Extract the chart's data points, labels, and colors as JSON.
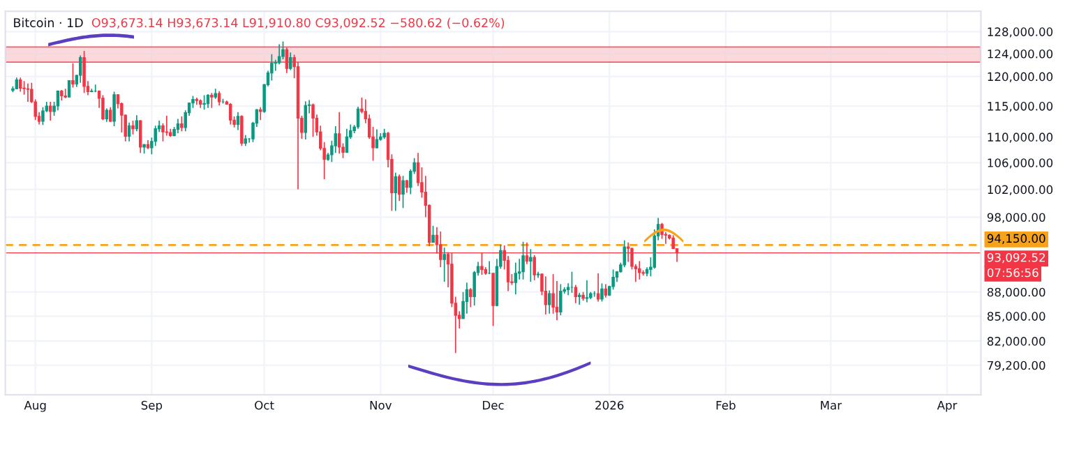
{
  "chart_data": {
    "type": "candlestick",
    "title": "Bitcoin · 1D",
    "subtitle": "O93,673.14 H93,673.14 L91,910.80 C93,092.52 −580.62 (−0.62%)",
    "annotations": [
      "07:56:56"
    ],
    "colors": [
      "#089981",
      "#089981",
      "#f23645",
      "#f23645",
      "#f23645",
      "#f23645",
      "#f23645",
      "#f23645",
      "#089981",
      "#089981",
      "#f23645",
      "#089981",
      "#089981",
      "#f23645",
      "#f23645",
      "#089981",
      "#f23645",
      "#089981",
      "#089981",
      "#f23645",
      "#f23645",
      "#089981",
      "#089981",
      "#f23645",
      "#f23645",
      "#089981",
      "#f23645",
      "#089981",
      "#f23645",
      "#f23645",
      "#f23645",
      "#089981",
      "#f23645",
      "#089981",
      "#f23645",
      "#089981",
      "#f23645",
      "#089981",
      "#089981",
      "#089981",
      "#f23645",
      "#f23645",
      "#f23645",
      "#089981",
      "#089981",
      "#f23645",
      "#089981",
      "#089981",
      "#089981",
      "#f23645",
      "#f23645",
      "#089981",
      "#089981",
      "#f23645",
      "#089981",
      "#f23645",
      "#089981",
      "#f23645",
      "#f23645",
      "#f23645",
      "#089981",
      "#f23645",
      "#089981",
      "#089981",
      "#089981",
      "#089981",
      "#f23645",
      "#089981",
      "#089981",
      "#089981",
      "#089981",
      "#089981",
      "#089981",
      "#f23645",
      "#089981",
      "#f23645",
      "#f23645",
      "#f23645",
      "#089981",
      "#089981",
      "#f23645",
      "#f23645",
      "#f23645",
      "#f23645",
      "#089981",
      "#089981",
      "#089981",
      "#f23645",
      "#f23645",
      "#089981",
      "#089981",
      "#089981",
      "#089981",
      "#f23645",
      "#f23645",
      "#f23645",
      "#f23645",
      "#089981",
      "#089981",
      "#089981",
      "#f23645",
      "#f23645",
      "#089981",
      "#f23645",
      "#089981",
      "#f23645",
      "#089981",
      "#089981",
      "#f23645",
      "#f23645",
      "#f23645",
      "#f23645",
      "#089981",
      "#f23645",
      "#f23645",
      "#089981",
      "#f23645",
      "#f23645",
      "#f23645",
      "#f23645",
      "#089981",
      "#089981",
      "#f23645",
      "#089981",
      "#089981",
      "#f23645",
      "#f23645",
      "#089981",
      "#f23645",
      "#089981",
      "#089981",
      "#f23645",
      "#f23645",
      "#f23645",
      "#089981",
      "#089981",
      "#089981",
      "#f23645",
      "#089981",
      "#f23645",
      "#089981",
      "#f23645",
      "#f23645",
      "#089981",
      "#f23645",
      "#f23645",
      "#089981",
      "#089981",
      "#089981",
      "#089981",
      "#f23645",
      "#089981",
      "#f23645",
      "#089981",
      "#089981",
      "#089981",
      "#f23645",
      "#089981",
      "#f23645",
      "#089981",
      "#089981",
      "#089981",
      "#089981",
      "#089981",
      "#f23645",
      "#f23645",
      "#f23645",
      "#f23645",
      "#f23645",
      "#089981",
      "#089981",
      "#089981",
      "#089981",
      "#f23645",
      "#f23645",
      "#f23645",
      "#f23645",
      "#f23645"
    ],
    "log": "y",
    "grid": true,
    "xlim": [
      "2025-07-24",
      "2026-04-10"
    ],
    "xticks": [
      {
        "value": "2025-08-01",
        "label": "Aug"
      },
      {
        "value": "2025-09-01",
        "label": "Sep"
      },
      {
        "value": "2025-10-01",
        "label": "Oct"
      },
      {
        "value": "2025-11-01",
        "label": "Nov"
      },
      {
        "value": "2025-12-01",
        "label": "Dec"
      },
      {
        "value": "2026-01-01",
        "label": "2026"
      },
      {
        "value": "2026-02-01",
        "label": "Feb"
      },
      {
        "value": "2026-03-01",
        "label": "Mar"
      },
      {
        "value": "2026-04-01",
        "label": "Apr"
      }
    ],
    "ylim": [
      75900,
      131800
    ],
    "yticks": [
      {
        "value": 79200,
        "label": "79,200.00"
      },
      {
        "value": 82000,
        "label": "82,000.00"
      },
      {
        "value": 85000,
        "label": "85,000.00"
      },
      {
        "value": 88000,
        "label": "88,000.00"
      },
      {
        "value": 98000,
        "label": "98,000.00"
      },
      {
        "value": 102000,
        "label": "102,000.00"
      },
      {
        "value": 106000,
        "label": "106,000.00"
      },
      {
        "value": 110000,
        "label": "110,000.00"
      },
      {
        "value": 115000,
        "label": "115,000.00"
      },
      {
        "value": 120000,
        "label": "120,000.00"
      },
      {
        "value": 124000,
        "label": "124,000.00"
      },
      {
        "value": 128000,
        "label": "128,000.00"
      }
    ],
    "bands": [
      {
        "axis": "y",
        "from": 122500,
        "to": 125200,
        "color": "#f9d0d5"
      }
    ],
    "ref_lines": [
      {
        "axis": "y",
        "value": 94150,
        "label": "94,150.00",
        "color": "#f7a21b",
        "line_style": "dashed"
      },
      {
        "axis": "y",
        "value": 93092.52,
        "label": "93,092.52",
        "color": "#f23645",
        "line_style": "solid"
      }
    ],
    "x": [
      "2025-07-26",
      "2025-07-27",
      "2025-07-28",
      "2025-07-29",
      "2025-07-30",
      "2025-07-31",
      "2025-08-01",
      "2025-08-02",
      "2025-08-03",
      "2025-08-04",
      "2025-08-05",
      "2025-08-06",
      "2025-08-07",
      "2025-08-08",
      "2025-08-09",
      "2025-08-10",
      "2025-08-11",
      "2025-08-12",
      "2025-08-13",
      "2025-08-14",
      "2025-08-15",
      "2025-08-16",
      "2025-08-17",
      "2025-08-18",
      "2025-08-19",
      "2025-08-20",
      "2025-08-21",
      "2025-08-22",
      "2025-08-23",
      "2025-08-24",
      "2025-08-25",
      "2025-08-26",
      "2025-08-27",
      "2025-08-28",
      "2025-08-29",
      "2025-08-30",
      "2025-08-31",
      "2025-09-01",
      "2025-09-02",
      "2025-09-03",
      "2025-09-04",
      "2025-09-05",
      "2025-09-06",
      "2025-09-07",
      "2025-09-08",
      "2025-09-09",
      "2025-09-10",
      "2025-09-11",
      "2025-09-12",
      "2025-09-13",
      "2025-09-14",
      "2025-09-15",
      "2025-09-16",
      "2025-09-17",
      "2025-09-18",
      "2025-09-19",
      "2025-09-20",
      "2025-09-21",
      "2025-09-22",
      "2025-09-23",
      "2025-09-24",
      "2025-09-25",
      "2025-09-26",
      "2025-09-27",
      "2025-09-28",
      "2025-09-29",
      "2025-09-30",
      "2025-10-01",
      "2025-10-02",
      "2025-10-03",
      "2025-10-04",
      "2025-10-05",
      "2025-10-06",
      "2025-10-07",
      "2025-10-08",
      "2025-10-09",
      "2025-10-10",
      "2025-10-11",
      "2025-10-12",
      "2025-10-13",
      "2025-10-14",
      "2025-10-15",
      "2025-10-16",
      "2025-10-17",
      "2025-10-18",
      "2025-10-19",
      "2025-10-20",
      "2025-10-21",
      "2025-10-22",
      "2025-10-23",
      "2025-10-24",
      "2025-10-25",
      "2025-10-26",
      "2025-10-27",
      "2025-10-28",
      "2025-10-29",
      "2025-10-30",
      "2025-10-31",
      "2025-11-01",
      "2025-11-02",
      "2025-11-03",
      "2025-11-04",
      "2025-11-05",
      "2025-11-06",
      "2025-11-07",
      "2025-11-08",
      "2025-11-09",
      "2025-11-10",
      "2025-11-11",
      "2025-11-12",
      "2025-11-13",
      "2025-11-14",
      "2025-11-15",
      "2025-11-16",
      "2025-11-17",
      "2025-11-18",
      "2025-11-19",
      "2025-11-20",
      "2025-11-21",
      "2025-11-22",
      "2025-11-23",
      "2025-11-24",
      "2025-11-25",
      "2025-11-26",
      "2025-11-27",
      "2025-11-28",
      "2025-11-29",
      "2025-11-30",
      "2025-12-01",
      "2025-12-02",
      "2025-12-03",
      "2025-12-04",
      "2025-12-05",
      "2025-12-06",
      "2025-12-07",
      "2025-12-08",
      "2025-12-09",
      "2025-12-10",
      "2025-12-11",
      "2025-12-12",
      "2025-12-13",
      "2025-12-14",
      "2025-12-15",
      "2025-12-16",
      "2025-12-17",
      "2025-12-18",
      "2025-12-19",
      "2025-12-20",
      "2025-12-21",
      "2025-12-22",
      "2025-12-23",
      "2025-12-24",
      "2025-12-25",
      "2025-12-26",
      "2025-12-27",
      "2025-12-28",
      "2025-12-29",
      "2025-12-30",
      "2025-12-31",
      "2026-01-01",
      "2026-01-02",
      "2026-01-03",
      "2026-01-04",
      "2026-01-05",
      "2026-01-06",
      "2026-01-07",
      "2026-01-08",
      "2026-01-09",
      "2026-01-10",
      "2026-01-11",
      "2026-01-12",
      "2026-01-13",
      "2026-01-14",
      "2026-01-15",
      "2026-01-16",
      "2026-01-17",
      "2026-01-18",
      "2026-01-19"
    ],
    "ohlc": [
      [
        117600,
        118300,
        117300,
        117900
      ],
      [
        117900,
        119800,
        117800,
        119400
      ],
      [
        119400,
        119800,
        117400,
        118000
      ],
      [
        118000,
        119200,
        116900,
        117900
      ],
      [
        117900,
        118800,
        115700,
        117800
      ],
      [
        117800,
        118900,
        115500,
        115700
      ],
      [
        115700,
        116100,
        112700,
        113300
      ],
      [
        113300,
        114000,
        112000,
        112500
      ],
      [
        112500,
        114800,
        111900,
        114200
      ],
      [
        114200,
        115700,
        114000,
        115000
      ],
      [
        115000,
        115700,
        112600,
        114100
      ],
      [
        114100,
        115700,
        113400,
        115000
      ],
      [
        115000,
        117600,
        114300,
        117500
      ],
      [
        117500,
        117700,
        115900,
        116700
      ],
      [
        116700,
        117900,
        116300,
        116500
      ],
      [
        116500,
        119300,
        116500,
        119300
      ],
      [
        119300,
        122300,
        118100,
        118700
      ],
      [
        118700,
        120300,
        118200,
        120200
      ],
      [
        120200,
        123700,
        118900,
        123300
      ],
      [
        123300,
        124500,
        117200,
        118300
      ],
      [
        118300,
        119200,
        116800,
        117400
      ],
      [
        117400,
        117900,
        117300,
        117500
      ],
      [
        117500,
        118600,
        117300,
        117500
      ],
      [
        117500,
        117600,
        114700,
        116300
      ],
      [
        116300,
        116800,
        112700,
        112900
      ],
      [
        112900,
        114600,
        112400,
        114300
      ],
      [
        114300,
        114800,
        112400,
        112500
      ],
      [
        112500,
        117400,
        111700,
        116900
      ],
      [
        116900,
        117000,
        114600,
        115400
      ],
      [
        115400,
        115600,
        110700,
        113500
      ],
      [
        113500,
        113600,
        109300,
        110100
      ],
      [
        110100,
        112300,
        109300,
        111800
      ],
      [
        111800,
        112600,
        110400,
        111300
      ],
      [
        111300,
        113500,
        110900,
        112600
      ],
      [
        112600,
        112700,
        107500,
        108400
      ],
      [
        108400,
        108900,
        107400,
        108800
      ],
      [
        108800,
        109500,
        108100,
        108300
      ],
      [
        108300,
        109900,
        107300,
        109300
      ],
      [
        109300,
        111800,
        108600,
        111300
      ],
      [
        111300,
        112600,
        110800,
        111800
      ],
      [
        111800,
        112200,
        109300,
        110800
      ],
      [
        110800,
        113400,
        110200,
        110700
      ],
      [
        110700,
        111300,
        110000,
        110200
      ],
      [
        110200,
        111600,
        110100,
        111200
      ],
      [
        111200,
        112900,
        110600,
        112100
      ],
      [
        112100,
        113300,
        110900,
        111500
      ],
      [
        111500,
        114300,
        110900,
        113900
      ],
      [
        113900,
        115600,
        113400,
        115500
      ],
      [
        115500,
        116700,
        114700,
        116100
      ],
      [
        116100,
        116400,
        115200,
        115900
      ],
      [
        115900,
        116100,
        114700,
        115300
      ],
      [
        115300,
        116800,
        114400,
        115400
      ],
      [
        115400,
        117000,
        114700,
        116800
      ],
      [
        116800,
        117200,
        114700,
        116500
      ],
      [
        116500,
        117900,
        116200,
        117100
      ],
      [
        117100,
        117500,
        115100,
        115700
      ],
      [
        115700,
        116200,
        115400,
        115700
      ],
      [
        115700,
        115900,
        115200,
        115300
      ],
      [
        115300,
        115500,
        112000,
        112700
      ],
      [
        112700,
        113300,
        111500,
        112000
      ],
      [
        112000,
        114000,
        111100,
        113300
      ],
      [
        113300,
        113500,
        108600,
        109000
      ],
      [
        109000,
        110300,
        108600,
        109700
      ],
      [
        109700,
        109800,
        109100,
        109700
      ],
      [
        109700,
        112400,
        109200,
        112200
      ],
      [
        112200,
        114500,
        111600,
        114400
      ],
      [
        114400,
        114800,
        112700,
        114100
      ],
      [
        114100,
        118700,
        113900,
        118600
      ],
      [
        118600,
        121000,
        118300,
        120600
      ],
      [
        120600,
        123900,
        119300,
        122300
      ],
      [
        122300,
        122900,
        121000,
        122400
      ],
      [
        122400,
        125700,
        122100,
        123500
      ],
      [
        123500,
        126200,
        123000,
        124700
      ],
      [
        124700,
        125100,
        120600,
        121400
      ],
      [
        121400,
        124200,
        121100,
        123300
      ],
      [
        123300,
        123800,
        119700,
        121700
      ],
      [
        121700,
        122500,
        102000,
        113000
      ],
      [
        113000,
        113400,
        109700,
        110700
      ],
      [
        110700,
        115800,
        109600,
        115100
      ],
      [
        115100,
        116000,
        113800,
        115200
      ],
      [
        115200,
        115400,
        110000,
        113000
      ],
      [
        113000,
        113600,
        110200,
        110800
      ],
      [
        110800,
        111800,
        107900,
        108200
      ],
      [
        108200,
        109200,
        103500,
        106500
      ],
      [
        106500,
        107500,
        106300,
        107200
      ],
      [
        107200,
        109400,
        106100,
        108600
      ],
      [
        108600,
        111700,
        107500,
        110500
      ],
      [
        110500,
        114000,
        107400,
        108400
      ],
      [
        108400,
        109000,
        106700,
        107600
      ],
      [
        107600,
        111300,
        107500,
        110000
      ],
      [
        110000,
        112000,
        109700,
        111000
      ],
      [
        111000,
        111900,
        110600,
        111600
      ],
      [
        111600,
        114900,
        111300,
        114500
      ],
      [
        114500,
        116400,
        113800,
        114100
      ],
      [
        114100,
        116100,
        112200,
        112900
      ],
      [
        112900,
        113600,
        109700,
        110000
      ],
      [
        110000,
        111600,
        106300,
        108300
      ],
      [
        108300,
        111200,
        108200,
        109600
      ],
      [
        109600,
        110600,
        109400,
        110000
      ],
      [
        110000,
        111300,
        109700,
        110600
      ],
      [
        110600,
        110800,
        105300,
        106500
      ],
      [
        106500,
        107300,
        98900,
        101500
      ],
      [
        101500,
        104500,
        98900,
        103900
      ],
      [
        103900,
        104200,
        100300,
        101300
      ],
      [
        101300,
        104000,
        99300,
        103300
      ],
      [
        103300,
        103400,
        101500,
        102300
      ],
      [
        102300,
        105000,
        101300,
        104700
      ],
      [
        104700,
        106700,
        104300,
        106000
      ],
      [
        106000,
        107500,
        102500,
        103000
      ],
      [
        103000,
        105300,
        100800,
        101600
      ],
      [
        101600,
        104000,
        98000,
        99700
      ],
      [
        99700,
        99800,
        94000,
        94500
      ],
      [
        94500,
        96800,
        94500,
        95500
      ],
      [
        95500,
        96600,
        93000,
        94200
      ],
      [
        94200,
        96000,
        91200,
        92200
      ],
      [
        92200,
        93800,
        89300,
        92900
      ],
      [
        92900,
        93200,
        88600,
        91600
      ],
      [
        91600,
        93100,
        86100,
        86600
      ],
      [
        86600,
        87400,
        80600,
        85100
      ],
      [
        85100,
        85600,
        83500,
        84700
      ],
      [
        84700,
        88000,
        84700,
        86800
      ],
      [
        86800,
        89200,
        85300,
        88300
      ],
      [
        88300,
        88500,
        86100,
        87400
      ],
      [
        87400,
        90700,
        86300,
        90500
      ],
      [
        90500,
        91900,
        90100,
        91300
      ],
      [
        91300,
        93100,
        90200,
        90900
      ],
      [
        90900,
        91200,
        90200,
        90400
      ],
      [
        90400,
        92000,
        90300,
        90400
      ],
      [
        90400,
        90400,
        83800,
        86300
      ],
      [
        86300,
        92300,
        86200,
        91300
      ],
      [
        91300,
        94200,
        91000,
        93400
      ],
      [
        93400,
        94100,
        90900,
        92100
      ],
      [
        92100,
        92700,
        88100,
        89300
      ],
      [
        89300,
        90300,
        88900,
        89200
      ],
      [
        89200,
        91800,
        87700,
        90400
      ],
      [
        90400,
        92300,
        89600,
        90600
      ],
      [
        90600,
        94600,
        89600,
        92700
      ],
      [
        92700,
        94500,
        91600,
        92000
      ],
      [
        92000,
        93600,
        89300,
        92500
      ],
      [
        92500,
        92800,
        89500,
        90200
      ],
      [
        90200,
        90600,
        89800,
        90300
      ],
      [
        90300,
        90400,
        87600,
        88100
      ],
      [
        88100,
        90000,
        85200,
        86400
      ],
      [
        86400,
        88200,
        85300,
        87800
      ],
      [
        87800,
        90300,
        85300,
        86100
      ],
      [
        86100,
        89400,
        84500,
        85500
      ],
      [
        85500,
        89000,
        85100,
        88100
      ],
      [
        88100,
        88600,
        87800,
        88300
      ],
      [
        88300,
        89100,
        87600,
        88600
      ],
      [
        88600,
        90600,
        87900,
        88600
      ],
      [
        88600,
        88900,
        86600,
        87400
      ],
      [
        87400,
        87900,
        86400,
        87600
      ],
      [
        87600,
        88000,
        86900,
        87200
      ],
      [
        87200,
        89500,
        86700,
        87300
      ],
      [
        87300,
        88000,
        87100,
        87800
      ],
      [
        87800,
        88100,
        87400,
        87800
      ],
      [
        87800,
        90400,
        86800,
        87100
      ],
      [
        87100,
        89100,
        86800,
        88400
      ],
      [
        88400,
        89000,
        87300,
        87600
      ],
      [
        87600,
        88800,
        87500,
        88700
      ],
      [
        88700,
        90900,
        88300,
        89900
      ],
      [
        89900,
        90700,
        89300,
        90600
      ],
      [
        90600,
        91800,
        90500,
        91500
      ],
      [
        91500,
        94800,
        91200,
        93900
      ],
      [
        93900,
        94500,
        91900,
        93700
      ],
      [
        93700,
        93800,
        90900,
        91300
      ],
      [
        91300,
        91600,
        89300,
        91000
      ],
      [
        91000,
        92000,
        89600,
        90500
      ],
      [
        90500,
        90800,
        90100,
        90400
      ],
      [
        90400,
        91200,
        90000,
        90900
      ],
      [
        90900,
        92500,
        90000,
        91200
      ],
      [
        91200,
        96300,
        91000,
        95400
      ],
      [
        95400,
        97900,
        94800,
        97000
      ],
      [
        97000,
        97200,
        95000,
        95600
      ],
      [
        95600,
        95900,
        94300,
        95500
      ],
      [
        95500,
        95600,
        94900,
        95100
      ],
      [
        95100,
        95500,
        93600,
        93673.14
      ],
      [
        93673.14,
        93673.14,
        91910.8,
        93092.52
      ]
    ]
  }
}
